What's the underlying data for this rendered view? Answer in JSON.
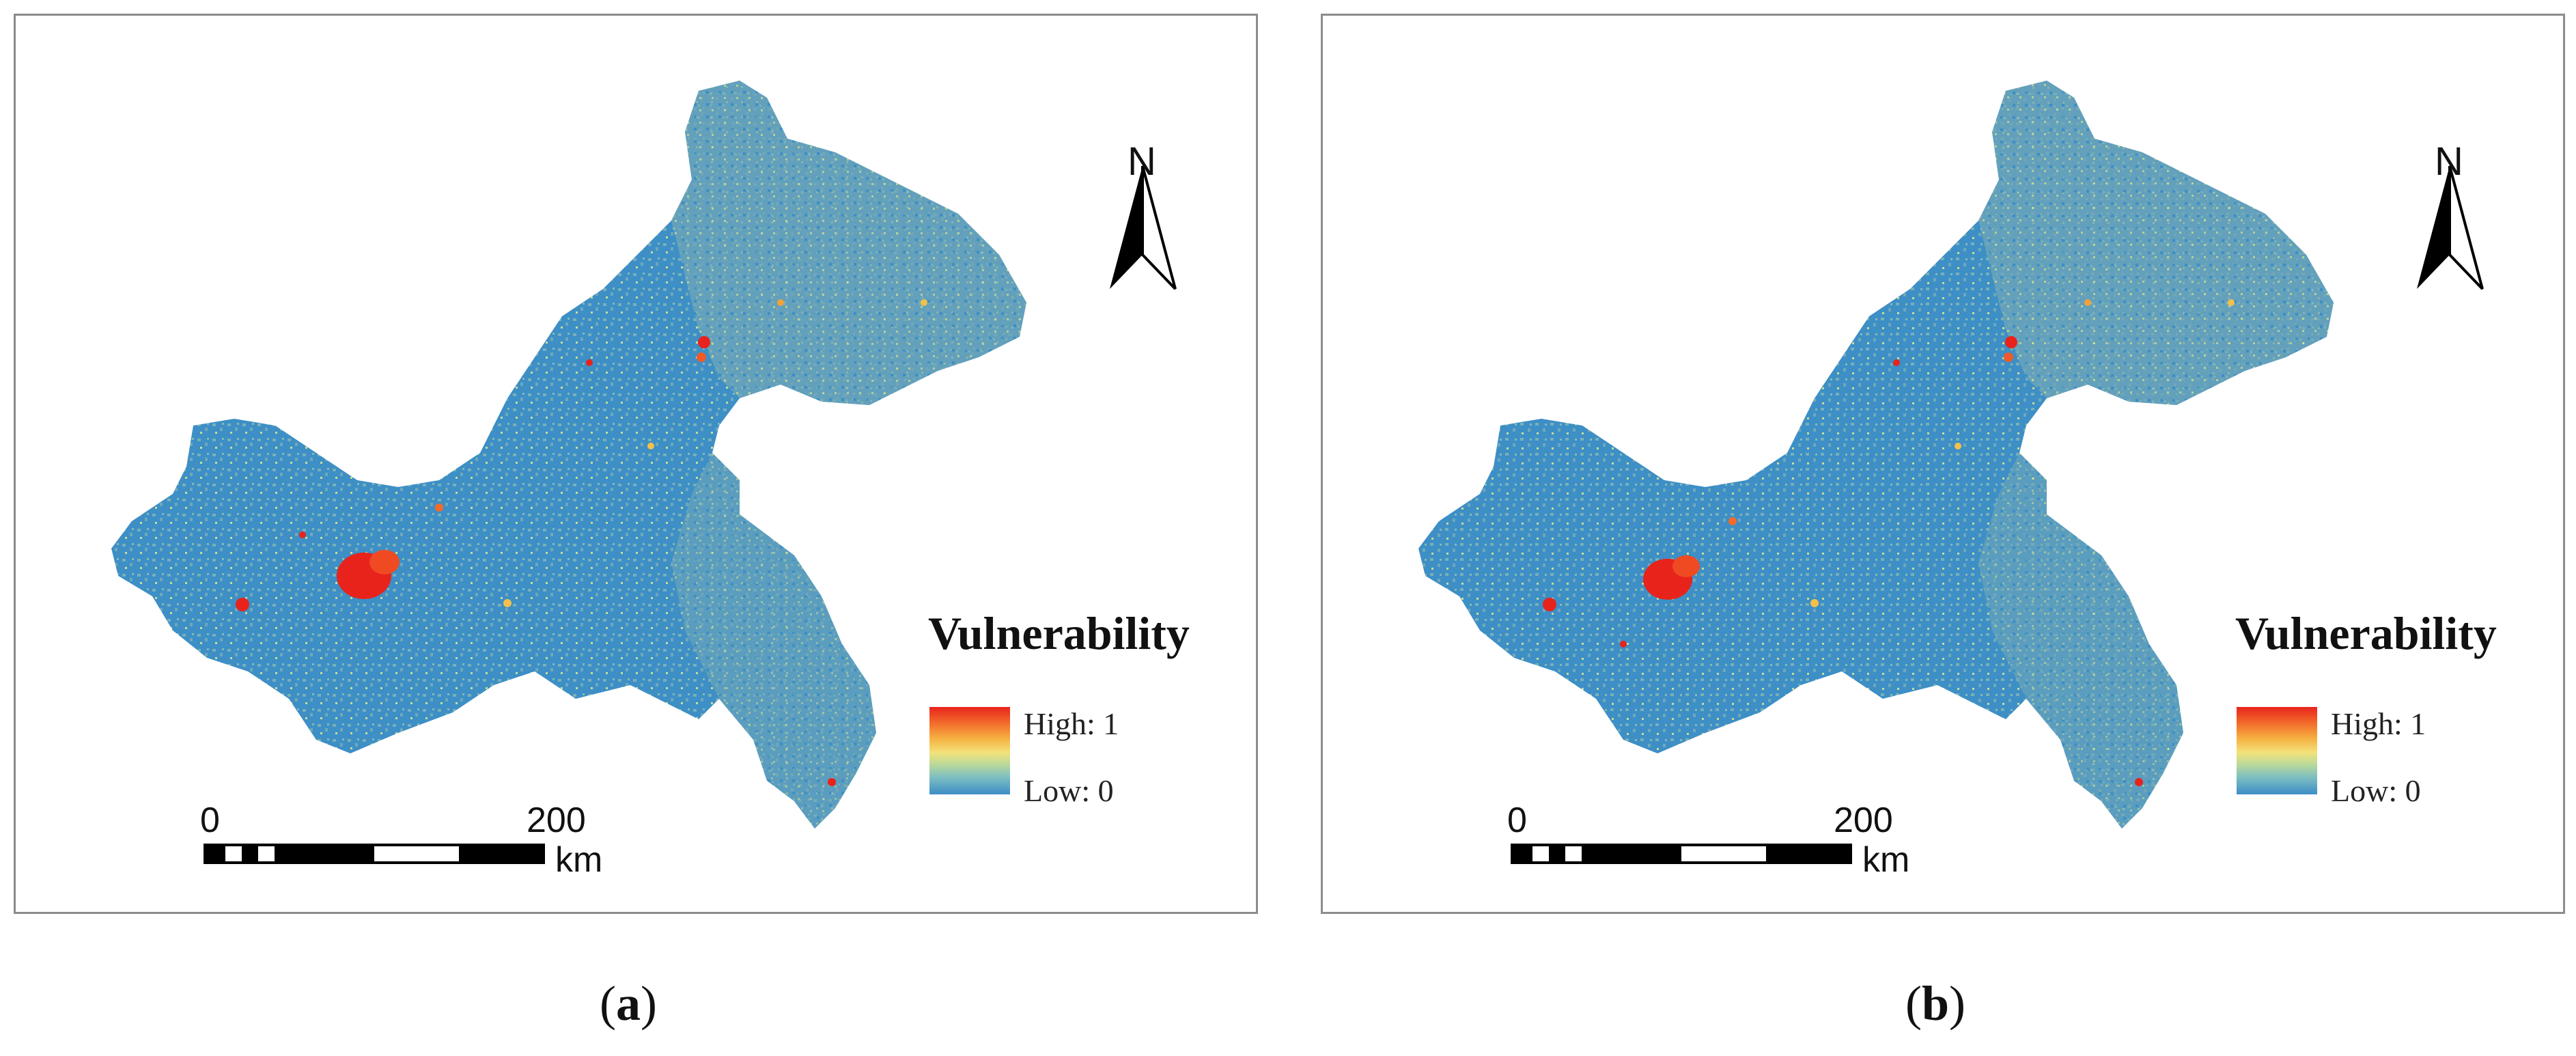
{
  "panels": [
    {
      "id": "a",
      "caption": {
        "open": "(",
        "letter": "a",
        "close": ")"
      },
      "legend": {
        "title": "Vulnerability",
        "high": "High: 1",
        "low": "Low: 0"
      },
      "north_label": "N",
      "scale": {
        "zero": "0",
        "mid": "200",
        "unit": "km"
      }
    },
    {
      "id": "b",
      "caption": {
        "open": "(",
        "letter": "b",
        "close": ")"
      },
      "legend": {
        "title": "Vulnerability",
        "high": "High: 1",
        "low": "Low: 0"
      },
      "north_label": "N",
      "scale": {
        "zero": "0",
        "mid": "200",
        "unit": "km"
      }
    }
  ],
  "colors": {
    "low": "#3d8fc6",
    "mid_low": "#7db3b5",
    "mid": "#d7e38f",
    "mid_high": "#f3c04c",
    "high": "#e8231c"
  }
}
